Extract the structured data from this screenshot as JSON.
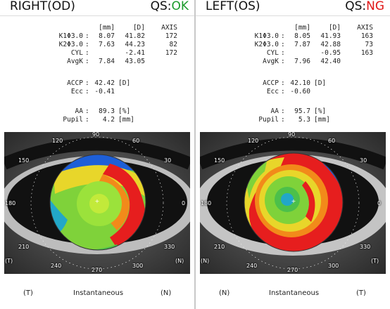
{
  "panels": [
    {
      "eye_title": "RIGHT(OD)",
      "qs_label": "QS:",
      "qs_status": "OK",
      "headers": {
        "mm": "[mm]",
        "d": "[D]",
        "axis": "AXIS"
      },
      "k_rows": [
        {
          "label": "K1Φ3.0",
          "mm": "8.07",
          "d": "41.82",
          "axis": "172"
        },
        {
          "label": "K2Φ3.0",
          "mm": "7.63",
          "d": "44.23",
          "axis": "82"
        },
        {
          "label": "CYL",
          "mm": "",
          "d": "-2.41",
          "axis": "172"
        },
        {
          "label": "AvgK",
          "mm": "7.84",
          "d": "43.05",
          "axis": ""
        }
      ],
      "accp": {
        "label": "ACCP",
        "value": "42.42",
        "unit": "[D]"
      },
      "ecc": {
        "label": "Ecc",
        "value": "-0.41"
      },
      "aa": {
        "label": "AA",
        "value": "89.3",
        "unit": "[%]"
      },
      "pupil": {
        "label": "Pupil",
        "value": "4.2",
        "unit": "[mm]"
      },
      "degrees": {
        "d90": "90",
        "d120": "120",
        "d60": "60",
        "d150": "150",
        "d30": "30",
        "d180": "180",
        "d0": "0",
        "d210": "210",
        "d330": "330",
        "d240": "240",
        "d300": "300",
        "d270": "270"
      },
      "map_left_side": "(T)",
      "map_right_side": "(N)",
      "footer_left": "(T)",
      "footer_center": "Instantaneous",
      "footer_right": "(N)"
    },
    {
      "eye_title": "LEFT(OS)",
      "qs_label": "QS:",
      "qs_status": "NG",
      "headers": {
        "mm": "[mm]",
        "d": "[D]",
        "axis": "AXIS"
      },
      "k_rows": [
        {
          "label": "K1Φ3.0",
          "mm": "8.05",
          "d": "41.93",
          "axis": "163"
        },
        {
          "label": "K2Φ3.0",
          "mm": "7.87",
          "d": "42.88",
          "axis": "73"
        },
        {
          "label": "CYL",
          "mm": "",
          "d": "-0.95",
          "axis": "163"
        },
        {
          "label": "AvgK",
          "mm": "7.96",
          "d": "42.40",
          "axis": ""
        }
      ],
      "accp": {
        "label": "ACCP",
        "value": "42.10",
        "unit": "[D]"
      },
      "ecc": {
        "label": "Ecc",
        "value": "-0.60"
      },
      "aa": {
        "label": "AA",
        "value": "95.7",
        "unit": "[%]"
      },
      "pupil": {
        "label": "Pupil",
        "value": "5.3",
        "unit": "[mm]"
      },
      "degrees": {
        "d90": "90",
        "d120": "120",
        "d60": "60",
        "d150": "150",
        "d30": "30",
        "d180": "180",
        "d0": "0",
        "d210": "210",
        "d330": "330",
        "d240": "240",
        "d300": "300",
        "d270": "270"
      },
      "map_left_side": "(N)",
      "map_right_side": "(T)",
      "footer_left": "(N)",
      "footer_center": "Instantaneous",
      "footer_right": "(T)"
    }
  ],
  "colors": {
    "ok": "#1a9a2a",
    "ng": "#e01818"
  }
}
